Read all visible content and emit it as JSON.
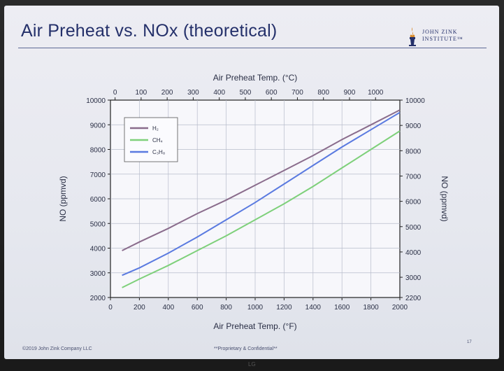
{
  "slide": {
    "title": "Air Preheat vs. NOx (theoretical)",
    "logo_line1": "JOHN ZINK",
    "logo_line2": "INSTITUTE™",
    "footer_left": "©2019 John Zink Company LLC",
    "footer_center": "**Proprietary & Confidential**",
    "page_number": "17"
  },
  "bezel": {
    "brand": "LG"
  },
  "colors": {
    "title": "#24306a",
    "H2": "#8a6c8c",
    "CH4": "#7ed07a",
    "C3H8": "#5a7ae0"
  },
  "chart_data": {
    "type": "line",
    "title": "",
    "xlabel": "Air Preheat Temp. (°F)",
    "x2label": "Air Preheat Temp. (°C)",
    "ylabel": "NO (ppmvd)",
    "y2label": "NO (ppmvd)",
    "xlim": [
      0,
      2000
    ],
    "x2lim": [
      -17.8,
      1093.3
    ],
    "ylim": [
      2000,
      10000
    ],
    "y2lim": [
      2200,
      10000
    ],
    "x_ticks": [
      0,
      200,
      400,
      600,
      800,
      1000,
      1200,
      1400,
      1600,
      1800,
      2000
    ],
    "x_tick_labels": [
      "0",
      "200",
      "400",
      "600",
      "800",
      "1000",
      "1200",
      "1400",
      "1600",
      "1800",
      "2000"
    ],
    "x2_ticks": [
      0,
      100,
      200,
      300,
      400,
      500,
      600,
      700,
      800,
      900,
      1000
    ],
    "x2_tick_labels": [
      "0",
      "100",
      "200",
      "300",
      "400",
      "500",
      "600",
      "700",
      "800",
      "900",
      "1000"
    ],
    "y_ticks": [
      2000,
      3000,
      4000,
      5000,
      6000,
      7000,
      8000,
      9000,
      10000
    ],
    "y_tick_labels": [
      "2000",
      "3000",
      "4000",
      "5000",
      "6000",
      "7000",
      "8000",
      "9000",
      "10000"
    ],
    "y2_ticks": [
      2200,
      3000,
      4000,
      5000,
      6000,
      7000,
      8000,
      9000,
      10000
    ],
    "y2_tick_labels": [
      "2200",
      "3000",
      "4000",
      "5000",
      "6000",
      "7000",
      "8000",
      "9000",
      "10000"
    ],
    "grid": true,
    "legend_position": "top-left",
    "series": [
      {
        "name": "H₂",
        "color": "#8a6c8c",
        "x": [
          80,
          200,
          400,
          600,
          800,
          1000,
          1200,
          1400,
          1600,
          1800,
          2000
        ],
        "y": [
          3900,
          4250,
          4800,
          5400,
          5950,
          6550,
          7150,
          7750,
          8400,
          9000,
          9600
        ]
      },
      {
        "name": "CH₄",
        "color": "#7ed07a",
        "x": [
          80,
          200,
          400,
          600,
          800,
          1000,
          1200,
          1400,
          1600,
          1800,
          2000
        ],
        "y": [
          2400,
          2750,
          3300,
          3900,
          4500,
          5150,
          5800,
          6500,
          7250,
          8000,
          8750
        ]
      },
      {
        "name": "C₃H₈",
        "color": "#5a7ae0",
        "x": [
          80,
          200,
          400,
          600,
          800,
          1000,
          1200,
          1400,
          1600,
          1800,
          2000
        ],
        "y": [
          2900,
          3200,
          3800,
          4450,
          5150,
          5850,
          6600,
          7350,
          8100,
          8800,
          9500
        ]
      }
    ]
  }
}
